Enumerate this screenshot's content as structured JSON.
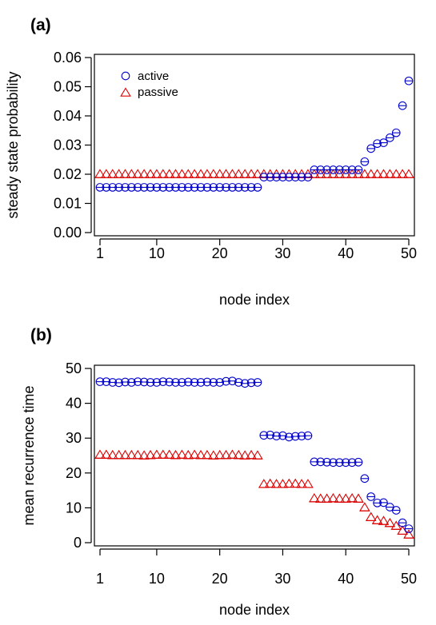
{
  "chart_data": [
    {
      "type": "scatter",
      "panel_label": "(a)",
      "xlabel": "node index",
      "ylabel": "steady state probability",
      "xlim": [
        1,
        50
      ],
      "ylim": [
        0,
        0.06
      ],
      "xticks": [
        "1",
        "10",
        "20",
        "30",
        "40",
        "50"
      ],
      "yticks": [
        "0.00",
        "0.01",
        "0.02",
        "0.03",
        "0.04",
        "0.05",
        "0.06"
      ],
      "legend": {
        "placement": "top-left",
        "entries": [
          "active",
          "passive"
        ]
      },
      "series": [
        {
          "name": "active",
          "marker": "circle",
          "color": "#0000cc",
          "x": [
            1,
            2,
            3,
            4,
            5,
            6,
            7,
            8,
            9,
            10,
            11,
            12,
            13,
            14,
            15,
            16,
            17,
            18,
            19,
            20,
            21,
            22,
            23,
            24,
            25,
            26,
            27,
            28,
            29,
            30,
            31,
            32,
            33,
            34,
            35,
            36,
            37,
            38,
            39,
            40,
            41,
            42,
            43,
            44,
            45,
            46,
            47,
            48,
            49,
            50
          ],
          "y": [
            0.0155,
            0.0155,
            0.0155,
            0.0155,
            0.0155,
            0.0155,
            0.0155,
            0.0155,
            0.0155,
            0.0155,
            0.0155,
            0.0155,
            0.0155,
            0.0155,
            0.0155,
            0.0155,
            0.0155,
            0.0155,
            0.0155,
            0.0155,
            0.0155,
            0.0155,
            0.0155,
            0.0155,
            0.0155,
            0.0155,
            0.019,
            0.019,
            0.019,
            0.019,
            0.019,
            0.019,
            0.019,
            0.019,
            0.0215,
            0.0215,
            0.0215,
            0.0215,
            0.0215,
            0.0215,
            0.0215,
            0.0215,
            0.0243,
            0.0288,
            0.0305,
            0.0308,
            0.0325,
            0.0342,
            0.0435,
            0.052
          ]
        },
        {
          "name": "passive",
          "marker": "triangle",
          "color": "#dd0000",
          "x": [
            1,
            2,
            3,
            4,
            5,
            6,
            7,
            8,
            9,
            10,
            11,
            12,
            13,
            14,
            15,
            16,
            17,
            18,
            19,
            20,
            21,
            22,
            23,
            24,
            25,
            26,
            27,
            28,
            29,
            30,
            31,
            32,
            33,
            34,
            35,
            36,
            37,
            38,
            39,
            40,
            41,
            42,
            43,
            44,
            45,
            46,
            47,
            48,
            49,
            50
          ],
          "y": [
            0.02,
            0.02,
            0.02,
            0.02,
            0.02,
            0.02,
            0.02,
            0.02,
            0.02,
            0.02,
            0.02,
            0.02,
            0.02,
            0.02,
            0.02,
            0.02,
            0.02,
            0.02,
            0.02,
            0.02,
            0.02,
            0.02,
            0.02,
            0.02,
            0.02,
            0.02,
            0.02,
            0.02,
            0.02,
            0.02,
            0.02,
            0.02,
            0.02,
            0.02,
            0.02,
            0.02,
            0.02,
            0.02,
            0.02,
            0.02,
            0.02,
            0.02,
            0.02,
            0.02,
            0.02,
            0.02,
            0.02,
            0.02,
            0.02,
            0.02
          ]
        }
      ]
    },
    {
      "type": "scatter",
      "panel_label": "(b)",
      "xlabel": "node index",
      "ylabel": "mean recurrence time",
      "xlim": [
        1,
        50
      ],
      "ylim": [
        0,
        50
      ],
      "xticks": [
        "1",
        "10",
        "20",
        "30",
        "40",
        "50"
      ],
      "yticks": [
        "0",
        "10",
        "20",
        "30",
        "40",
        "50"
      ],
      "series": [
        {
          "name": "active",
          "marker": "circle",
          "color": "#0000cc",
          "x": [
            1,
            2,
            3,
            4,
            5,
            6,
            7,
            8,
            9,
            10,
            11,
            12,
            13,
            14,
            15,
            16,
            17,
            18,
            19,
            20,
            21,
            22,
            23,
            24,
            25,
            26,
            27,
            28,
            29,
            30,
            31,
            32,
            33,
            34,
            35,
            36,
            37,
            38,
            39,
            40,
            41,
            42,
            43,
            44,
            45,
            46,
            47,
            48,
            49,
            50
          ],
          "y": [
            46.2,
            46.2,
            46.0,
            45.9,
            46.1,
            46.0,
            46.2,
            46.1,
            46.0,
            46.0,
            46.2,
            46.1,
            46.0,
            46.0,
            46.1,
            46.0,
            46.0,
            46.1,
            46.0,
            46.0,
            46.3,
            46.4,
            46.0,
            45.7,
            45.9,
            46.0,
            30.8,
            30.9,
            30.6,
            30.7,
            30.3,
            30.5,
            30.6,
            30.7,
            23.2,
            23.2,
            23.1,
            23.0,
            23.0,
            23.0,
            23.0,
            23.1,
            18.4,
            13.2,
            11.4,
            11.5,
            10.2,
            9.3,
            5.7,
            4.0
          ]
        },
        {
          "name": "passive",
          "marker": "triangle",
          "color": "#dd0000",
          "x": [
            1,
            2,
            3,
            4,
            5,
            6,
            7,
            8,
            9,
            10,
            11,
            12,
            13,
            14,
            15,
            16,
            17,
            18,
            19,
            20,
            21,
            22,
            23,
            24,
            25,
            26,
            27,
            28,
            29,
            30,
            31,
            32,
            33,
            34,
            35,
            36,
            37,
            38,
            39,
            40,
            41,
            42,
            43,
            44,
            45,
            46,
            47,
            48,
            49,
            50
          ],
          "y": [
            25.2,
            25.2,
            25.1,
            25.1,
            25.1,
            25.1,
            25.1,
            25.0,
            25.1,
            25.2,
            25.2,
            25.2,
            25.1,
            25.2,
            25.1,
            25.2,
            25.1,
            25.1,
            25.0,
            25.1,
            25.1,
            25.2,
            25.1,
            25.0,
            25.1,
            25.0,
            16.8,
            16.9,
            16.8,
            16.8,
            16.9,
            16.9,
            16.8,
            16.8,
            12.7,
            12.6,
            12.6,
            12.7,
            12.6,
            12.6,
            12.7,
            12.6,
            10.1,
            7.3,
            6.4,
            6.2,
            5.6,
            4.8,
            3.4,
            2.3
          ]
        }
      ]
    }
  ]
}
